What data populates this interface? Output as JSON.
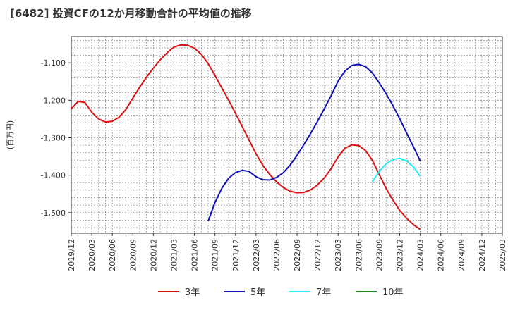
{
  "chart_data": {
    "type": "line",
    "title": "[6482]  投資CFの12か月移動合計の平均値の推移",
    "ylabel": "(百万円)",
    "xlabel": "",
    "ylim": [
      -1555,
      -1030
    ],
    "yticks": [
      -1100,
      -1200,
      -1300,
      -1400,
      -1500
    ],
    "ytick_labels": [
      "-1,100",
      "-1,200",
      "-1,300",
      "-1,400",
      "-1,500"
    ],
    "x_start": "2019-12",
    "x_end": "2025-03",
    "xtick_labels": [
      "2019/12",
      "2020/03",
      "2020/06",
      "2020/09",
      "2020/12",
      "2021/03",
      "2021/06",
      "2021/09",
      "2021/12",
      "2022/03",
      "2022/06",
      "2022/09",
      "2022/12",
      "2023/03",
      "2023/06",
      "2023/09",
      "2023/12",
      "2024/03",
      "2024/06",
      "2024/09",
      "2024/12",
      "2025/03"
    ],
    "grid": true,
    "legend_position": "bottom",
    "series": [
      {
        "name": "3年",
        "color": "#dd1111",
        "x": [
          "2019-12",
          "2020-01",
          "2020-02",
          "2020-03",
          "2020-04",
          "2020-05",
          "2020-06",
          "2020-07",
          "2020-08",
          "2020-09",
          "2020-10",
          "2020-11",
          "2020-12",
          "2021-01",
          "2021-02",
          "2021-03",
          "2021-04",
          "2021-05",
          "2021-06",
          "2021-07",
          "2021-08",
          "2021-09",
          "2021-10",
          "2021-11",
          "2021-12",
          "2022-01",
          "2022-02",
          "2022-03",
          "2022-04",
          "2022-05",
          "2022-06",
          "2022-07",
          "2022-08",
          "2022-09",
          "2022-10",
          "2022-11",
          "2022-12",
          "2023-01",
          "2023-02",
          "2023-03",
          "2023-04",
          "2023-05",
          "2023-06",
          "2023-07",
          "2023-08",
          "2023-09",
          "2023-10",
          "2023-11",
          "2023-12",
          "2024-01",
          "2024-02",
          "2024-03"
        ],
        "values": [
          -1223,
          -1203,
          -1206,
          -1232,
          -1250,
          -1258,
          -1256,
          -1245,
          -1224,
          -1194,
          -1165,
          -1138,
          -1114,
          -1092,
          -1073,
          -1058,
          -1052,
          -1053,
          -1061,
          -1077,
          -1102,
          -1134,
          -1167,
          -1200,
          -1235,
          -1271,
          -1307,
          -1343,
          -1374,
          -1398,
          -1418,
          -1433,
          -1443,
          -1447,
          -1446,
          -1439,
          -1426,
          -1407,
          -1382,
          -1351,
          -1328,
          -1319,
          -1321,
          -1334,
          -1360,
          -1398,
          -1435,
          -1466,
          -1494,
          -1515,
          -1532,
          -1545
        ]
      },
      {
        "name": "5年",
        "color": "#1111bb",
        "x": [
          "2021-08",
          "2021-09",
          "2021-10",
          "2021-11",
          "2021-12",
          "2022-01",
          "2022-02",
          "2022-03",
          "2022-04",
          "2022-05",
          "2022-06",
          "2022-07",
          "2022-08",
          "2022-09",
          "2022-10",
          "2022-11",
          "2022-12",
          "2023-01",
          "2023-02",
          "2023-03",
          "2023-04",
          "2023-05",
          "2023-06",
          "2023-07",
          "2023-08",
          "2023-09",
          "2023-10",
          "2023-11",
          "2023-12",
          "2024-01",
          "2024-02",
          "2024-03"
        ],
        "values": [
          -1523,
          -1473,
          -1435,
          -1408,
          -1393,
          -1387,
          -1390,
          -1404,
          -1412,
          -1413,
          -1406,
          -1393,
          -1373,
          -1347,
          -1318,
          -1288,
          -1256,
          -1222,
          -1187,
          -1149,
          -1122,
          -1107,
          -1104,
          -1110,
          -1127,
          -1153,
          -1182,
          -1214,
          -1249,
          -1287,
          -1324,
          -1362
        ]
      },
      {
        "name": "7年",
        "color": "#22eeee",
        "x": [
          "2023-08",
          "2023-09",
          "2023-10",
          "2023-11",
          "2023-12",
          "2024-01",
          "2024-02",
          "2024-03"
        ],
        "values": [
          -1418,
          -1390,
          -1370,
          -1358,
          -1355,
          -1362,
          -1378,
          -1403
        ]
      },
      {
        "name": "10年",
        "color": "#228822",
        "x": [],
        "values": []
      }
    ]
  }
}
